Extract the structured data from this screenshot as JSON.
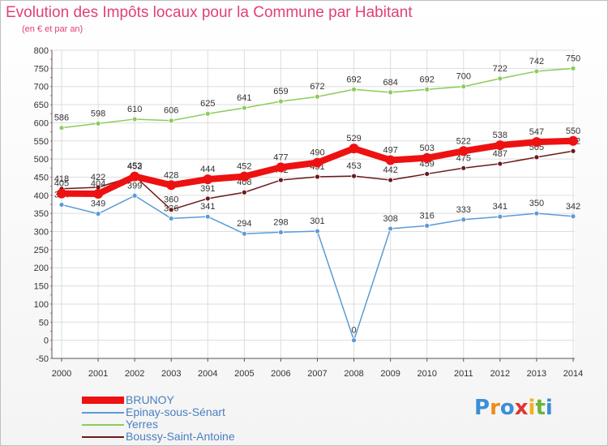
{
  "title": "Evolution des Impôts locaux pour la Commune par Habitant",
  "subtitle": "(en € et par an)",
  "logo": {
    "text": "Proxiti",
    "colors": [
      "#3a8fd6",
      "#f08a1a",
      "#3a8fd6",
      "#e2342d",
      "#f2b01e",
      "#6bb43a",
      "#3a8fd6"
    ]
  },
  "chart_data": {
    "type": "line",
    "x": [
      2000,
      2001,
      2002,
      2003,
      2004,
      2005,
      2006,
      2007,
      2008,
      2009,
      2010,
      2011,
      2012,
      2013,
      2014
    ],
    "ylim": [
      -50,
      800
    ],
    "yticks": [
      -50,
      0,
      50,
      100,
      150,
      200,
      250,
      300,
      350,
      400,
      450,
      500,
      550,
      600,
      650,
      700,
      750,
      800
    ],
    "grid": true,
    "legend_position": "bottom-left",
    "series": [
      {
        "name": "Yerres",
        "color": "#8ccc5a",
        "values": [
          586,
          598,
          610,
          606,
          625,
          641,
          659,
          672,
          692,
          684,
          692,
          700,
          722,
          742,
          750
        ]
      },
      {
        "name": "Epinay-sous-Sénart",
        "color": "#5b9bd5",
        "values": [
          374,
          349,
          399,
          336,
          341,
          294,
          298,
          301,
          0,
          308,
          316,
          333,
          341,
          350,
          342
        ]
      },
      {
        "name": "Boussy-Saint-Antoine",
        "color": "#6b1a1a",
        "values": [
          418,
          422,
          453,
          360,
          391,
          408,
          442,
          451,
          453,
          442,
          459,
          475,
          487,
          505,
          522
        ]
      },
      {
        "name": "BRUNOY",
        "color": "#ee1111",
        "values": [
          405,
          404,
          452,
          428,
          444,
          452,
          477,
          490,
          529,
          497,
          503,
          522,
          538,
          547,
          550
        ]
      }
    ]
  },
  "legend": [
    {
      "label": "BRUNOY",
      "color": "#ee1111"
    },
    {
      "label": "Epinay-sous-Sénart",
      "color": "#5b9bd5"
    },
    {
      "label": "Yerres",
      "color": "#8ccc5a"
    },
    {
      "label": "Boussy-Saint-Antoine",
      "color": "#6b1a1a"
    }
  ]
}
